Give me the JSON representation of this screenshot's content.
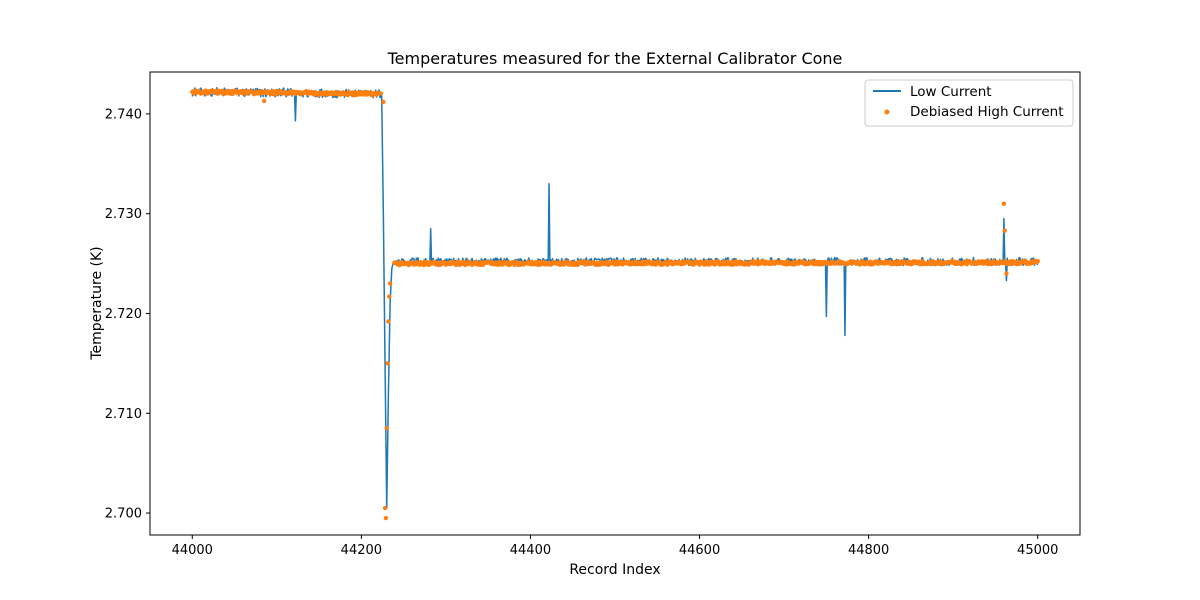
{
  "chart_data": {
    "type": "line",
    "title": "Temperatures measured for the External Calibrator Cone",
    "xlabel": "Record Index",
    "ylabel": "Temperature (K)",
    "xlim": [
      43950,
      45050
    ],
    "ylim": [
      2.6978,
      2.7442
    ],
    "xticks": [
      44000,
      44200,
      44400,
      44600,
      44800,
      45000
    ],
    "xtick_labels": [
      "44000",
      "44200",
      "44400",
      "44600",
      "44800",
      "45000"
    ],
    "yticks": [
      2.7,
      2.71,
      2.72,
      2.73,
      2.74
    ],
    "ytick_labels": [
      "2.700",
      "2.710",
      "2.720",
      "2.730",
      "2.740"
    ],
    "grid": false,
    "legend_position": "top-right",
    "series": [
      {
        "name": "Low Current",
        "style": "line",
        "color": "#1f77b4",
        "profile": {
          "x": [
            44000,
            44224,
            44226,
            44228,
            44230,
            44232,
            44234,
            44236,
            44238,
            45000
          ],
          "y": [
            2.7422,
            2.742,
            2.73,
            2.715,
            2.7005,
            2.712,
            2.721,
            2.7245,
            2.7252,
            2.7252
          ]
        },
        "noise_amplitude": 0.0007,
        "spikes": [
          {
            "x": 44122,
            "y": 2.7393
          },
          {
            "x": 44282,
            "y": 2.7285
          },
          {
            "x": 44422,
            "y": 2.733
          },
          {
            "x": 44750,
            "y": 2.7197
          },
          {
            "x": 44772,
            "y": 2.7178
          },
          {
            "x": 44960,
            "y": 2.7295
          },
          {
            "x": 44963,
            "y": 2.7233
          }
        ]
      },
      {
        "name": "Debiased High Current",
        "style": "scatter",
        "color": "#ff7f0e",
        "profile": {
          "x": [
            44000,
            44224,
            44226,
            44228,
            44230,
            44232,
            44234,
            44236,
            44238,
            45000
          ],
          "y": [
            2.7422,
            2.742,
            2.7305,
            2.718,
            2.6995,
            2.709,
            2.7215,
            2.724,
            2.725,
            2.7251
          ]
        },
        "noise_amplitude": 0.0002,
        "extra_points": [
          {
            "x": 44085,
            "y": 2.7413
          },
          {
            "x": 44228,
            "y": 2.7005
          },
          {
            "x": 44229,
            "y": 2.6995
          },
          {
            "x": 44230,
            "y": 2.7085
          },
          {
            "x": 44231,
            "y": 2.715
          },
          {
            "x": 44232,
            "y": 2.7192
          },
          {
            "x": 44233,
            "y": 2.7217
          },
          {
            "x": 44234,
            "y": 2.723
          },
          {
            "x": 44226,
            "y": 2.7412
          },
          {
            "x": 44960,
            "y": 2.731
          },
          {
            "x": 44961,
            "y": 2.7283
          },
          {
            "x": 44963,
            "y": 2.724
          }
        ]
      }
    ]
  }
}
